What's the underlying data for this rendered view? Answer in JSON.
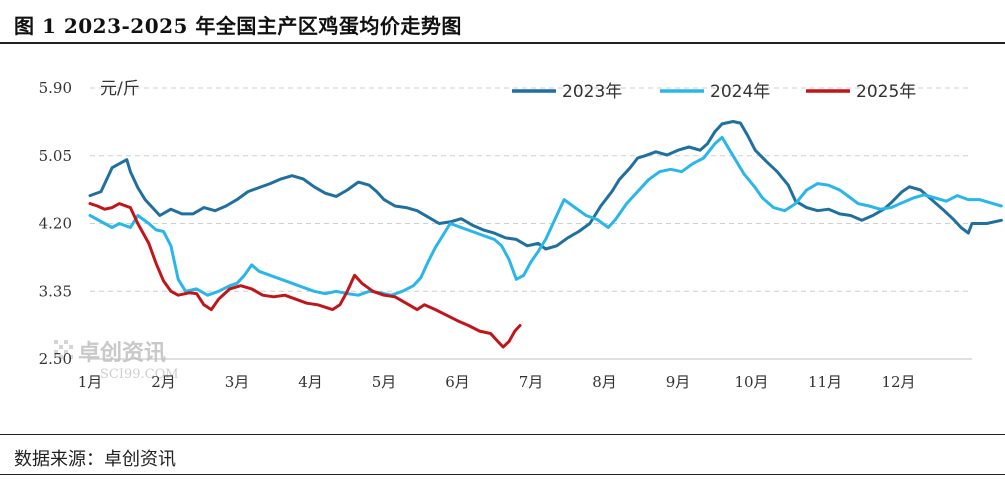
{
  "title": "图 1  2023-2025 年全国主产区鸡蛋均价走势图",
  "source": "数据来源：卓创资讯",
  "watermark": {
    "name": "卓创资讯",
    "domain": "SCI99.COM"
  },
  "chart_data": {
    "type": "line",
    "ylabel": "元/斤",
    "ylim": [
      2.5,
      5.9
    ],
    "yticks": [
      2.5,
      3.35,
      4.2,
      5.05,
      5.9
    ],
    "ytick_labels": [
      "2.50",
      "3.35",
      "4.20",
      "5.05",
      "5.90"
    ],
    "x_categories": [
      "1月",
      "2月",
      "3月",
      "4月",
      "5月",
      "6月",
      "7月",
      "8月",
      "9月",
      "10月",
      "11月",
      "12月"
    ],
    "x_domain": [
      1,
      13
    ],
    "grid": "horizontal-dashed",
    "legend_position": "top",
    "series": [
      {
        "name": "2023年",
        "color": "#1f6f9f",
        "points": [
          [
            1.0,
            4.55
          ],
          [
            1.15,
            4.6
          ],
          [
            1.3,
            4.9
          ],
          [
            1.4,
            4.95
          ],
          [
            1.5,
            5.0
          ],
          [
            1.55,
            4.85
          ],
          [
            1.65,
            4.65
          ],
          [
            1.75,
            4.5
          ],
          [
            1.85,
            4.4
          ],
          [
            1.95,
            4.3
          ],
          [
            2.1,
            4.38
          ],
          [
            2.25,
            4.32
          ],
          [
            2.4,
            4.32
          ],
          [
            2.55,
            4.4
          ],
          [
            2.7,
            4.36
          ],
          [
            2.85,
            4.42
          ],
          [
            3.0,
            4.5
          ],
          [
            3.15,
            4.6
          ],
          [
            3.3,
            4.65
          ],
          [
            3.45,
            4.7
          ],
          [
            3.6,
            4.76
          ],
          [
            3.75,
            4.8
          ],
          [
            3.9,
            4.76
          ],
          [
            4.05,
            4.66
          ],
          [
            4.2,
            4.58
          ],
          [
            4.35,
            4.54
          ],
          [
            4.5,
            4.62
          ],
          [
            4.65,
            4.72
          ],
          [
            4.8,
            4.68
          ],
          [
            4.9,
            4.6
          ],
          [
            5.0,
            4.5
          ],
          [
            5.15,
            4.42
          ],
          [
            5.3,
            4.4
          ],
          [
            5.45,
            4.36
          ],
          [
            5.6,
            4.28
          ],
          [
            5.75,
            4.2
          ],
          [
            5.9,
            4.22
          ],
          [
            6.05,
            4.26
          ],
          [
            6.2,
            4.18
          ],
          [
            6.35,
            4.12
          ],
          [
            6.5,
            4.08
          ],
          [
            6.65,
            4.02
          ],
          [
            6.8,
            4.0
          ],
          [
            6.95,
            3.92
          ],
          [
            7.1,
            3.95
          ],
          [
            7.2,
            3.88
          ],
          [
            7.35,
            3.92
          ],
          [
            7.5,
            4.02
          ],
          [
            7.65,
            4.1
          ],
          [
            7.8,
            4.2
          ],
          [
            7.95,
            4.42
          ],
          [
            8.1,
            4.6
          ],
          [
            8.2,
            4.75
          ],
          [
            8.35,
            4.9
          ],
          [
            8.45,
            5.02
          ],
          [
            8.55,
            5.05
          ],
          [
            8.7,
            5.1
          ],
          [
            8.85,
            5.06
          ],
          [
            9.0,
            5.12
          ],
          [
            9.15,
            5.16
          ],
          [
            9.3,
            5.12
          ],
          [
            9.4,
            5.2
          ],
          [
            9.5,
            5.35
          ],
          [
            9.6,
            5.45
          ],
          [
            9.75,
            5.48
          ],
          [
            9.85,
            5.46
          ],
          [
            9.95,
            5.3
          ],
          [
            10.05,
            5.12
          ],
          [
            10.2,
            4.98
          ],
          [
            10.35,
            4.85
          ],
          [
            10.5,
            4.68
          ],
          [
            10.6,
            4.48
          ],
          [
            10.75,
            4.4
          ],
          [
            10.9,
            4.36
          ],
          [
            11.05,
            4.38
          ],
          [
            11.2,
            4.32
          ],
          [
            11.35,
            4.3
          ],
          [
            11.5,
            4.24
          ],
          [
            11.65,
            4.3
          ],
          [
            11.8,
            4.38
          ],
          [
            11.9,
            4.46
          ],
          [
            12.05,
            4.6
          ],
          [
            12.15,
            4.66
          ],
          [
            12.3,
            4.62
          ],
          [
            12.45,
            4.5
          ],
          [
            12.6,
            4.38
          ],
          [
            12.75,
            4.25
          ],
          [
            12.85,
            4.15
          ],
          [
            12.95,
            4.08
          ],
          [
            13.0,
            4.2
          ],
          [
            13.2,
            4.2
          ],
          [
            13.4,
            4.24
          ]
        ]
      },
      {
        "name": "2024年",
        "color": "#2ab6e8",
        "points": [
          [
            1.0,
            4.3
          ],
          [
            1.1,
            4.25
          ],
          [
            1.2,
            4.2
          ],
          [
            1.3,
            4.15
          ],
          [
            1.4,
            4.2
          ],
          [
            1.55,
            4.15
          ],
          [
            1.65,
            4.3
          ],
          [
            1.8,
            4.2
          ],
          [
            1.9,
            4.12
          ],
          [
            2.0,
            4.1
          ],
          [
            2.1,
            3.92
          ],
          [
            2.2,
            3.5
          ],
          [
            2.3,
            3.35
          ],
          [
            2.45,
            3.38
          ],
          [
            2.6,
            3.3
          ],
          [
            2.75,
            3.35
          ],
          [
            2.9,
            3.42
          ],
          [
            3.0,
            3.45
          ],
          [
            3.1,
            3.55
          ],
          [
            3.2,
            3.68
          ],
          [
            3.3,
            3.6
          ],
          [
            3.45,
            3.55
          ],
          [
            3.6,
            3.5
          ],
          [
            3.75,
            3.45
          ],
          [
            3.9,
            3.4
          ],
          [
            4.05,
            3.35
          ],
          [
            4.2,
            3.32
          ],
          [
            4.35,
            3.35
          ],
          [
            4.5,
            3.32
          ],
          [
            4.65,
            3.3
          ],
          [
            4.8,
            3.35
          ],
          [
            4.95,
            3.33
          ],
          [
            5.1,
            3.3
          ],
          [
            5.25,
            3.35
          ],
          [
            5.4,
            3.42
          ],
          [
            5.5,
            3.52
          ],
          [
            5.6,
            3.72
          ],
          [
            5.7,
            3.9
          ],
          [
            5.8,
            4.05
          ],
          [
            5.9,
            4.2
          ],
          [
            6.05,
            4.15
          ],
          [
            6.2,
            4.1
          ],
          [
            6.35,
            4.05
          ],
          [
            6.5,
            4.0
          ],
          [
            6.6,
            3.92
          ],
          [
            6.7,
            3.75
          ],
          [
            6.8,
            3.5
          ],
          [
            6.9,
            3.55
          ],
          [
            7.0,
            3.72
          ],
          [
            7.1,
            3.85
          ],
          [
            7.2,
            4.0
          ],
          [
            7.35,
            4.3
          ],
          [
            7.45,
            4.5
          ],
          [
            7.6,
            4.4
          ],
          [
            7.75,
            4.3
          ],
          [
            7.9,
            4.25
          ],
          [
            8.05,
            4.15
          ],
          [
            8.15,
            4.25
          ],
          [
            8.3,
            4.45
          ],
          [
            8.45,
            4.6
          ],
          [
            8.6,
            4.75
          ],
          [
            8.75,
            4.85
          ],
          [
            8.9,
            4.88
          ],
          [
            9.05,
            4.85
          ],
          [
            9.2,
            4.95
          ],
          [
            9.35,
            5.02
          ],
          [
            9.5,
            5.2
          ],
          [
            9.6,
            5.28
          ],
          [
            9.75,
            5.05
          ],
          [
            9.9,
            4.82
          ],
          [
            10.05,
            4.65
          ],
          [
            10.15,
            4.52
          ],
          [
            10.3,
            4.4
          ],
          [
            10.45,
            4.36
          ],
          [
            10.6,
            4.45
          ],
          [
            10.75,
            4.62
          ],
          [
            10.9,
            4.7
          ],
          [
            11.05,
            4.68
          ],
          [
            11.2,
            4.62
          ],
          [
            11.35,
            4.52
          ],
          [
            11.45,
            4.45
          ],
          [
            11.6,
            4.42
          ],
          [
            11.75,
            4.38
          ],
          [
            11.9,
            4.4
          ],
          [
            12.05,
            4.46
          ],
          [
            12.2,
            4.52
          ],
          [
            12.35,
            4.56
          ],
          [
            12.5,
            4.52
          ],
          [
            12.65,
            4.48
          ],
          [
            12.8,
            4.55
          ],
          [
            12.95,
            4.5
          ],
          [
            13.1,
            4.5
          ],
          [
            13.25,
            4.46
          ],
          [
            13.4,
            4.42
          ]
        ]
      },
      {
        "name": "2025年",
        "color": "#c0151a",
        "points": [
          [
            1.0,
            4.45
          ],
          [
            1.1,
            4.42
          ],
          [
            1.2,
            4.38
          ],
          [
            1.3,
            4.4
          ],
          [
            1.4,
            4.45
          ],
          [
            1.55,
            4.4
          ],
          [
            1.65,
            4.2
          ],
          [
            1.8,
            3.95
          ],
          [
            1.9,
            3.7
          ],
          [
            2.0,
            3.48
          ],
          [
            2.1,
            3.35
          ],
          [
            2.2,
            3.3
          ],
          [
            2.35,
            3.33
          ],
          [
            2.45,
            3.32
          ],
          [
            2.55,
            3.18
          ],
          [
            2.65,
            3.12
          ],
          [
            2.75,
            3.25
          ],
          [
            2.9,
            3.38
          ],
          [
            3.05,
            3.42
          ],
          [
            3.2,
            3.38
          ],
          [
            3.35,
            3.3
          ],
          [
            3.5,
            3.28
          ],
          [
            3.65,
            3.3
          ],
          [
            3.8,
            3.25
          ],
          [
            3.95,
            3.2
          ],
          [
            4.1,
            3.18
          ],
          [
            4.2,
            3.15
          ],
          [
            4.3,
            3.12
          ],
          [
            4.4,
            3.18
          ],
          [
            4.5,
            3.35
          ],
          [
            4.6,
            3.55
          ],
          [
            4.7,
            3.45
          ],
          [
            4.85,
            3.35
          ],
          [
            5.0,
            3.3
          ],
          [
            5.15,
            3.28
          ],
          [
            5.3,
            3.2
          ],
          [
            5.45,
            3.12
          ],
          [
            5.55,
            3.18
          ],
          [
            5.7,
            3.12
          ],
          [
            5.85,
            3.05
          ],
          [
            6.0,
            2.98
          ],
          [
            6.15,
            2.92
          ],
          [
            6.3,
            2.85
          ],
          [
            6.45,
            2.82
          ],
          [
            6.55,
            2.72
          ],
          [
            6.62,
            2.65
          ],
          [
            6.7,
            2.72
          ],
          [
            6.78,
            2.85
          ],
          [
            6.85,
            2.92
          ]
        ]
      }
    ]
  }
}
